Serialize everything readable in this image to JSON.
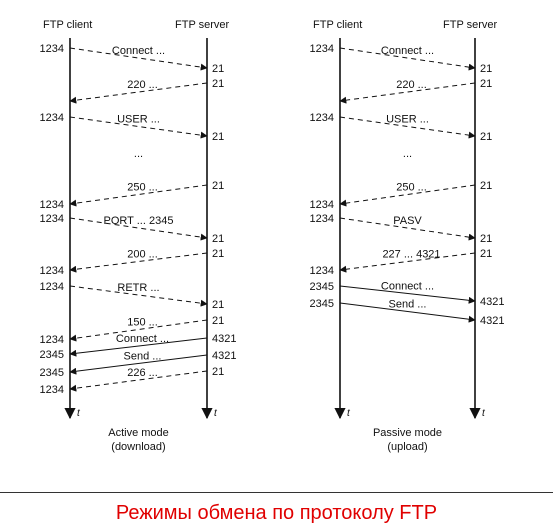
{
  "caption": "Режимы обмена по протоколу FTP",
  "colors": {
    "lines": "#111111",
    "caption": "#e00000"
  },
  "axis_symbol": "t",
  "diagrams": [
    {
      "id": "active",
      "client_label": "FTP client",
      "server_label": "FTP server",
      "mode_title": "Active mode",
      "mode_subtitle": "(download)",
      "messages": [
        {
          "label": "Connect ...",
          "from": "client",
          "dashed": true,
          "client_port": "1234",
          "server_port": "21"
        },
        {
          "label": "220 ...",
          "from": "server",
          "dashed": true,
          "client_port": "",
          "server_port": "21"
        },
        {
          "label": "USER ...",
          "from": "client",
          "dashed": true,
          "client_port": "1234",
          "server_port": "21"
        },
        {
          "label": "...",
          "type": "gap"
        },
        {
          "label": "250 ...",
          "from": "server",
          "dashed": true,
          "client_port": "1234",
          "server_port": "21"
        },
        {
          "label": "PORT ... 2345",
          "from": "client",
          "dashed": true,
          "client_port": "1234",
          "server_port": "21"
        },
        {
          "label": "200 ...",
          "from": "server",
          "dashed": true,
          "client_port": "1234",
          "server_port": "21"
        },
        {
          "label": "RETR ...",
          "from": "client",
          "dashed": true,
          "client_port": "1234",
          "server_port": "21"
        },
        {
          "label": "150 ...",
          "from": "server",
          "dashed": true,
          "client_port": "1234",
          "server_port": "21"
        },
        {
          "label": "Connect ...",
          "from": "server",
          "dashed": false,
          "client_port": "2345",
          "server_port": "4321"
        },
        {
          "label": "Send ...",
          "from": "server",
          "dashed": false,
          "client_port": "2345",
          "server_port": "4321"
        },
        {
          "label": "226 ...",
          "from": "server",
          "dashed": true,
          "client_port": "1234",
          "server_port": "21"
        }
      ]
    },
    {
      "id": "passive",
      "client_label": "FTP client",
      "server_label": "FTP server",
      "mode_title": "Passive mode",
      "mode_subtitle": "(upload)",
      "messages": [
        {
          "label": "Connect ...",
          "from": "client",
          "dashed": true,
          "client_port": "1234",
          "server_port": "21"
        },
        {
          "label": "220 ...",
          "from": "server",
          "dashed": true,
          "client_port": "",
          "server_port": "21"
        },
        {
          "label": "USER ...",
          "from": "client",
          "dashed": true,
          "client_port": "1234",
          "server_port": "21"
        },
        {
          "label": "...",
          "type": "gap"
        },
        {
          "label": "250 ...",
          "from": "server",
          "dashed": true,
          "client_port": "1234",
          "server_port": "21"
        },
        {
          "label": "PASV",
          "from": "client",
          "dashed": true,
          "client_port": "1234",
          "server_port": "21"
        },
        {
          "label": "227 ... 4321",
          "from": "server",
          "dashed": true,
          "client_port": "1234",
          "server_port": "21"
        },
        {
          "label": "Connect ...",
          "from": "client",
          "dashed": false,
          "client_port": "2345",
          "server_port": "4321"
        },
        {
          "label": "Send ...",
          "from": "client",
          "dashed": false,
          "client_port": "2345",
          "server_port": "4321"
        }
      ]
    }
  ]
}
